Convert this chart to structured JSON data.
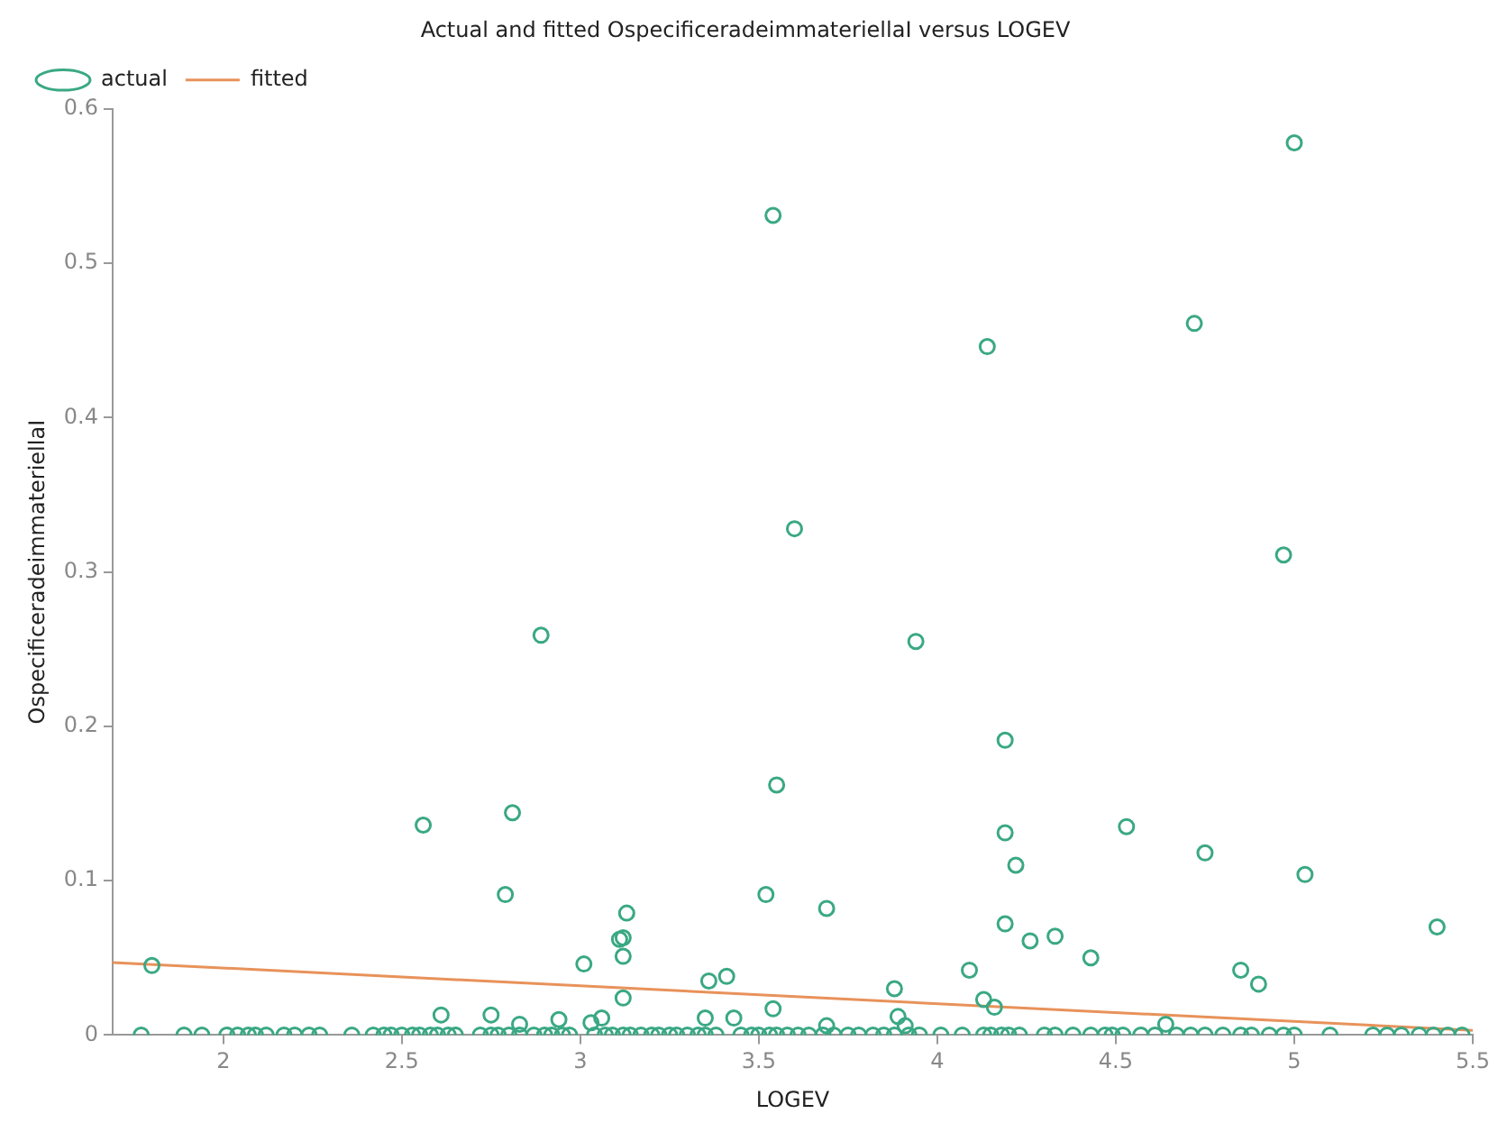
{
  "chart_data": {
    "type": "scatter",
    "title": "Actual and fitted OspecificeradeimmateriellaI versus LOGEV",
    "xlabel": "LOGEV",
    "ylabel": "OspecificeradeimmateriellaI",
    "xlim": [
      1.69,
      5.5
    ],
    "xticks": [
      2,
      2.5,
      3,
      3.5,
      4,
      4.5,
      5,
      5.5
    ],
    "ylim": [
      0,
      0.6
    ],
    "yticks": [
      0,
      0.1,
      0.2,
      0.3,
      0.4,
      0.5,
      0.6
    ],
    "grid": false,
    "legend": "top left",
    "marker": "circle",
    "series": [
      {
        "name": "actual",
        "color": "#3aa884",
        "x": [
          1.8,
          2.56,
          2.81,
          2.79,
          2.89,
          3.01,
          3.11,
          3.12,
          3.12,
          3.13,
          3.12,
          3.36,
          3.41,
          3.52,
          3.54,
          3.55,
          3.54,
          3.6,
          3.69,
          3.94,
          3.88,
          4.19,
          4.22,
          4.19,
          4.26,
          4.33,
          4.43,
          4.09,
          4.13,
          4.16,
          4.53,
          4.75,
          5.03,
          4.85,
          4.9,
          5.4,
          4.64,
          4.14,
          4.72,
          5.0,
          4.97,
          4.19,
          2.61,
          2.75,
          2.83,
          2.94,
          3.03,
          3.06,
          3.35,
          3.43,
          3.69,
          3.89,
          3.91,
          1.77,
          1.89,
          1.94,
          2.01,
          2.04,
          2.07,
          2.09,
          2.12,
          2.17,
          2.2,
          2.24,
          2.27,
          2.36,
          2.42,
          2.45,
          2.47,
          2.5,
          2.53,
          2.55,
          2.58,
          2.6,
          2.63,
          2.65,
          2.72,
          2.75,
          2.77,
          2.8,
          2.83,
          2.87,
          2.9,
          2.92,
          2.95,
          2.97,
          3.04,
          3.07,
          3.09,
          3.12,
          3.14,
          3.17,
          3.2,
          3.22,
          3.25,
          3.27,
          3.3,
          3.33,
          3.35,
          3.38,
          3.45,
          3.48,
          3.5,
          3.53,
          3.55,
          3.58,
          3.61,
          3.64,
          3.68,
          3.71,
          3.75,
          3.78,
          3.82,
          3.85,
          3.88,
          3.92,
          3.95,
          4.01,
          4.07,
          4.13,
          4.15,
          4.18,
          4.2,
          4.23,
          4.3,
          4.33,
          4.38,
          4.43,
          4.47,
          4.49,
          4.52,
          4.57,
          4.61,
          4.67,
          4.71,
          4.75,
          4.8,
          4.85,
          4.88,
          4.93,
          4.97,
          5.0,
          5.1,
          5.22,
          5.26,
          5.3,
          5.35,
          5.39,
          5.43,
          5.47
        ],
        "values": [
          0.045,
          0.136,
          0.144,
          0.091,
          0.259,
          0.046,
          0.062,
          0.063,
          0.051,
          0.079,
          0.024,
          0.035,
          0.038,
          0.091,
          0.531,
          0.162,
          0.017,
          0.328,
          0.082,
          0.255,
          0.03,
          0.131,
          0.11,
          0.072,
          0.061,
          0.064,
          0.05,
          0.042,
          0.023,
          0.018,
          0.135,
          0.118,
          0.104,
          0.042,
          0.033,
          0.07,
          0.007,
          0.446,
          0.461,
          0.578,
          0.311,
          0.191,
          0.013,
          0.013,
          0.007,
          0.01,
          0.008,
          0.011,
          0.011,
          0.011,
          0.006,
          0.012,
          0.006,
          0,
          0,
          0,
          0,
          0,
          0,
          0,
          0,
          0,
          0,
          0,
          0,
          0,
          0,
          0,
          0,
          0,
          0,
          0,
          0,
          0,
          0,
          0,
          0,
          0,
          0,
          0,
          0,
          0,
          0,
          0,
          0,
          0,
          0,
          0,
          0,
          0,
          0,
          0,
          0,
          0,
          0,
          0,
          0,
          0,
          0,
          0,
          0,
          0,
          0,
          0,
          0,
          0,
          0,
          0,
          0,
          0,
          0,
          0,
          0,
          0,
          0,
          0,
          0,
          0,
          0,
          0,
          0,
          0,
          0,
          0,
          0,
          0,
          0,
          0,
          0,
          0,
          0,
          0,
          0,
          0,
          0,
          0,
          0,
          0,
          0,
          0,
          0,
          0,
          0,
          0,
          0,
          0,
          0,
          0,
          0,
          0
        ]
      },
      {
        "name": "fitted",
        "type": "line",
        "color": "#e8925a",
        "marker": "none",
        "line_style": "solid",
        "x": [
          1.69,
          5.5
        ],
        "values": [
          0.047,
          0.003
        ]
      }
    ]
  }
}
